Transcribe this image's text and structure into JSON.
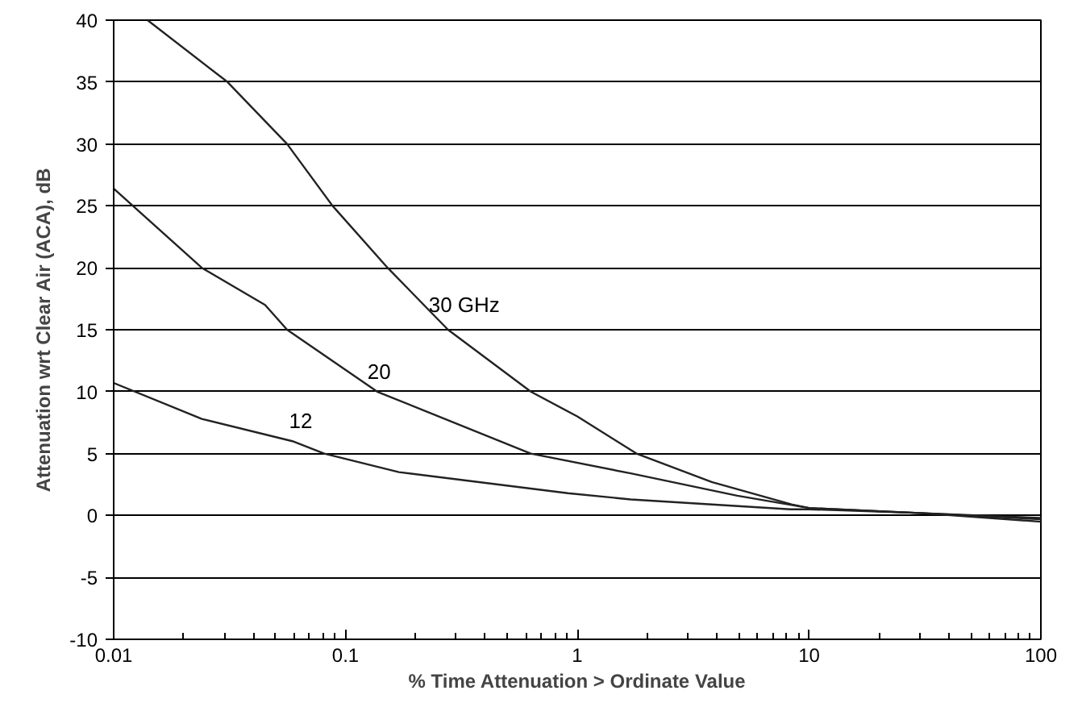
{
  "chart_data": {
    "type": "line",
    "xlabel": "% Time Attenuation > Ordinate Value",
    "ylabel": "Attenuation wrt Clear Air (ACA), dB",
    "log": "x",
    "xlim": [
      0.01,
      100
    ],
    "xticks": [
      0.01,
      0.1,
      1,
      10,
      100
    ],
    "ylim": [
      -10,
      40
    ],
    "yticks": [
      -10,
      -5,
      0,
      5,
      10,
      15,
      20,
      25,
      30,
      35,
      40
    ],
    "grid": "y",
    "marker": "none",
    "line_style": "solid",
    "series": [
      {
        "name": "30 GHz",
        "color": "#222222",
        "x": [
          0.014,
          0.031,
          0.056,
          0.088,
          0.152,
          0.277,
          0.63,
          1.0,
          1.8,
          3.8,
          8.4,
          10,
          30,
          100
        ],
        "values": [
          40,
          35,
          30,
          25,
          20,
          15,
          10,
          8,
          5,
          2.7,
          0.9,
          0.6,
          0.2,
          -0.5
        ]
      },
      {
        "name": "20",
        "color": "#222222",
        "x": [
          0.01,
          0.024,
          0.045,
          0.056,
          0.137,
          0.63,
          1.7,
          4.9,
          10,
          30,
          100
        ],
        "values": [
          26.4,
          20,
          17,
          15,
          10,
          5,
          3.4,
          1.6,
          0.6,
          0.2,
          -0.3
        ]
      },
      {
        "name": "12",
        "color": "#222222",
        "x": [
          0.01,
          0.024,
          0.059,
          0.081,
          0.17,
          0.91,
          1.7,
          8.3,
          10,
          30,
          100
        ],
        "values": [
          10.7,
          7.8,
          6,
          5,
          3.5,
          1.8,
          1.3,
          0.5,
          0.5,
          0.2,
          -0.2
        ]
      }
    ]
  }
}
